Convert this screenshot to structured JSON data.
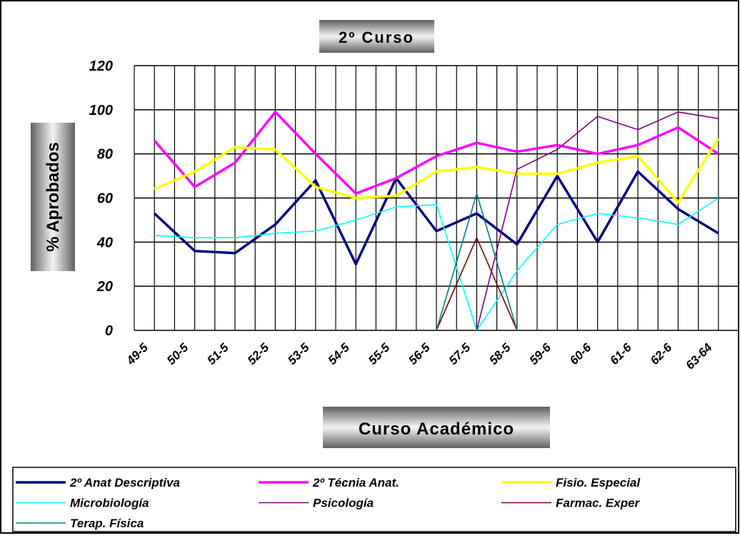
{
  "chart_data": {
    "type": "line",
    "title": "2º Curso",
    "x_label": "Curso Académico",
    "y_label": "% Aprobados",
    "categories": [
      "49-5",
      "50-5",
      "51-5",
      "52-5",
      "53-5",
      "54-5",
      "55-5",
      "56-5",
      "57-5",
      "58-5",
      "59-6",
      "60-6",
      "61-6",
      "62-6",
      "63-64"
    ],
    "ylim": [
      0,
      120
    ],
    "yticks": [
      0,
      20,
      40,
      60,
      80,
      100,
      120
    ],
    "grid": true,
    "series": [
      {
        "name": "2º Anat Descriptiva",
        "color": "#000080",
        "values": [
          53,
          36,
          35,
          48,
          68,
          30,
          69,
          45,
          53,
          39,
          70,
          40,
          72,
          55,
          44
        ]
      },
      {
        "name": "2º Técnia Anat.",
        "color": "#ff00ff",
        "values": [
          86,
          65,
          76,
          99,
          80,
          62,
          69,
          79,
          85,
          81,
          84,
          80,
          84,
          92,
          80
        ]
      },
      {
        "name": "Fisio. Especial",
        "color": "#ffff00",
        "values": [
          64,
          72,
          83,
          82,
          65,
          60,
          61,
          72,
          74,
          71,
          71,
          76,
          79,
          58,
          87
        ]
      },
      {
        "name": "Microbiología",
        "color": "#00ffff",
        "values": [
          43,
          42,
          42,
          44,
          45,
          50,
          56,
          57,
          0,
          27,
          48,
          53,
          51,
          48,
          60
        ]
      },
      {
        "name": "Psicología",
        "color": "#800080",
        "values": [
          null,
          null,
          null,
          null,
          null,
          null,
          null,
          null,
          0,
          73,
          82,
          97,
          91,
          99,
          96
        ]
      },
      {
        "name": "Farmac. Exper",
        "color": "#800000",
        "values": [
          null,
          null,
          null,
          null,
          null,
          null,
          null,
          0,
          42,
          0,
          null,
          null,
          null,
          null,
          null
        ]
      },
      {
        "name": "Terap. Física",
        "color": "#008080",
        "values": [
          null,
          null,
          null,
          null,
          null,
          null,
          null,
          0,
          62,
          0,
          null,
          null,
          null,
          null,
          null
        ]
      }
    ]
  }
}
